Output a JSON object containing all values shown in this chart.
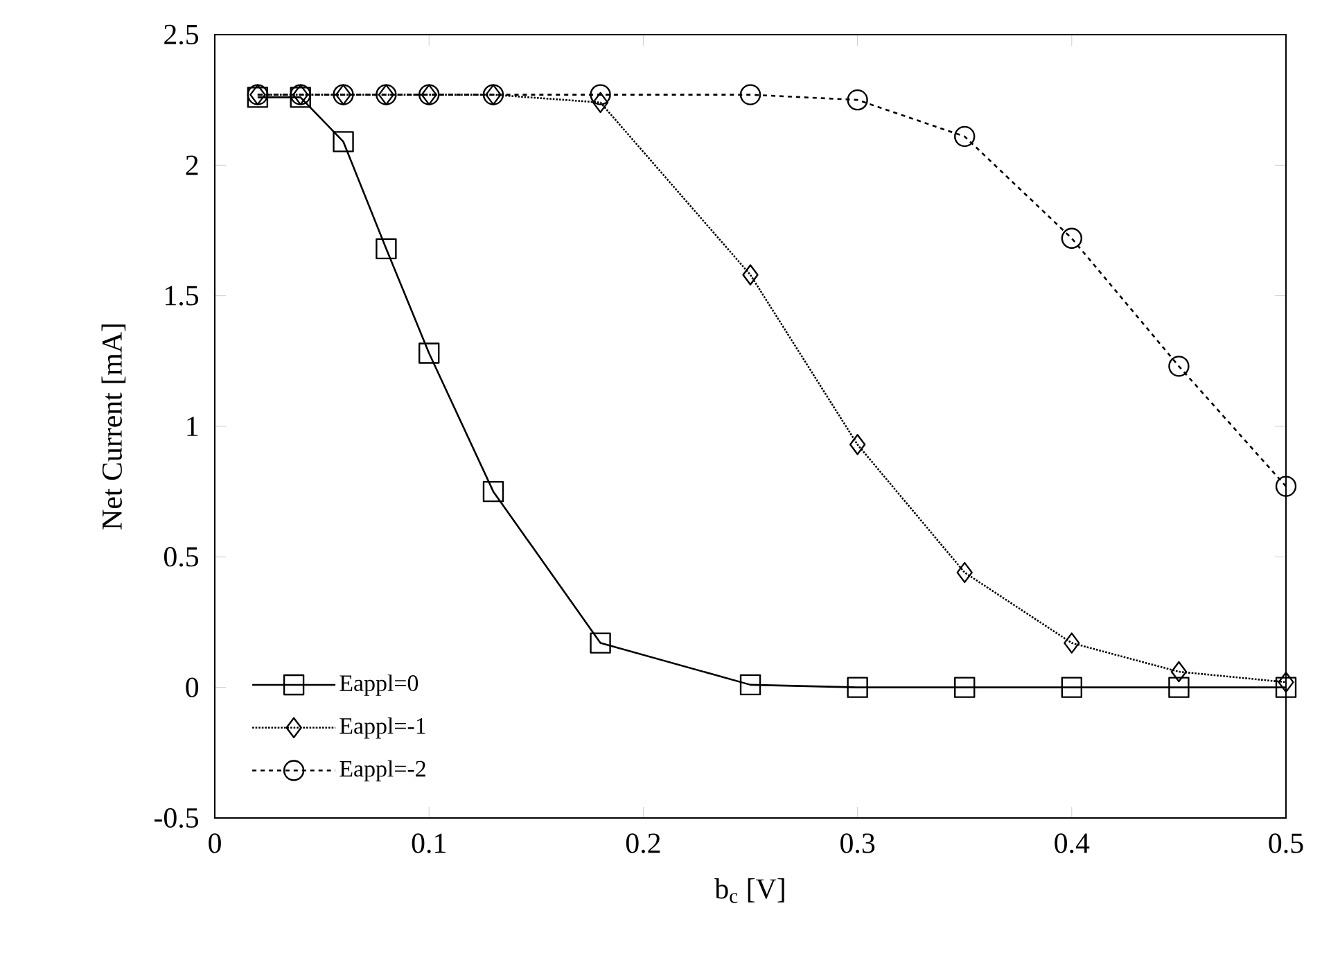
{
  "chart_data": {
    "type": "line",
    "xlabel": "b$_{c}$ [V]",
    "ylabel": "Net Current [mA]",
    "xlim": [
      0,
      0.5
    ],
    "ylim": [
      -0.5,
      2.5
    ],
    "xticks": [
      0,
      0.1,
      0.2,
      0.3,
      0.4,
      0.5
    ],
    "yticks": [
      -0.5,
      0,
      0.5,
      1,
      1.5,
      2,
      2.5
    ],
    "grid": false,
    "legend": "bottom left",
    "series": [
      {
        "name": "Eappl=0",
        "color": "#000000",
        "marker": "square",
        "line_style": "solid",
        "x": [
          0.02,
          0.04,
          0.06,
          0.08,
          0.1,
          0.13,
          0.18,
          0.25,
          0.3,
          0.35,
          0.4,
          0.45,
          0.5
        ],
        "values": [
          2.26,
          2.26,
          2.09,
          1.68,
          1.28,
          0.75,
          0.17,
          0.01,
          0,
          0,
          0,
          0,
          0
        ]
      },
      {
        "name": "Eappl=-1",
        "color": "#000000",
        "marker": "diamond",
        "line_style": "dotted",
        "x": [
          0.02,
          0.04,
          0.06,
          0.08,
          0.1,
          0.13,
          0.18,
          0.25,
          0.3,
          0.35,
          0.4,
          0.45,
          0.5
        ],
        "values": [
          2.27,
          2.27,
          2.27,
          2.27,
          2.27,
          2.27,
          2.24,
          1.58,
          0.93,
          0.44,
          0.17,
          0.06,
          0.02
        ]
      },
      {
        "name": "Eappl=-2",
        "color": "#000000",
        "marker": "circle",
        "line_style": "dashed",
        "x": [
          0.02,
          0.04,
          0.06,
          0.08,
          0.1,
          0.13,
          0.18,
          0.25,
          0.3,
          0.35,
          0.4,
          0.45,
          0.5
        ],
        "values": [
          2.27,
          2.27,
          2.27,
          2.27,
          2.27,
          2.27,
          2.27,
          2.27,
          2.25,
          2.11,
          1.72,
          1.23,
          0.77
        ]
      }
    ]
  }
}
